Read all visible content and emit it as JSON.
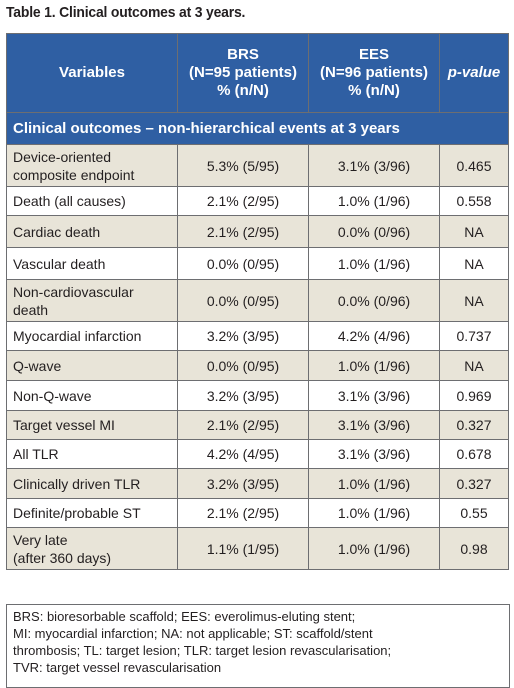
{
  "caption": "Table 1. Clinical outcomes at 3 years.",
  "header": {
    "col1": "Variables",
    "col2_line1": "BRS",
    "col2_line2": "(N=95 patients)",
    "col2_line3": "% (n/N)",
    "col3_line1": "EES",
    "col3_line2": "(N=96 patients)",
    "col3_line3": "% (n/N)",
    "col4": "p-value"
  },
  "section_title": "Clinical outcomes – non-hierarchical events at 3 years",
  "rows": [
    {
      "label_line1": "Device-oriented",
      "label_line2": "composite endpoint",
      "brs": "5.3% (5/95)",
      "ees": "3.1% (3/96)",
      "p": "0.465"
    },
    {
      "label_line1": "Death (all causes)",
      "label_line2": "",
      "brs": "2.1% (2/95)",
      "ees": "1.0% (1/96)",
      "p": "0.558"
    },
    {
      "label_line1": "Cardiac death",
      "label_line2": "",
      "brs": "2.1% (2/95)",
      "ees": "0.0% (0/96)",
      "p": "NA"
    },
    {
      "label_line1": "Vascular death",
      "label_line2": "",
      "brs": "0.0% (0/95)",
      "ees": "1.0% (1/96)",
      "p": "NA"
    },
    {
      "label_line1": "Non-cardiovascular",
      "label_line2": "death",
      "brs": "0.0% (0/95)",
      "ees": "0.0% (0/96)",
      "p": "NA"
    },
    {
      "label_line1": "Myocardial infarction",
      "label_line2": "",
      "brs": "3.2% (3/95)",
      "ees": "4.2% (4/96)",
      "p": "0.737"
    },
    {
      "label_line1": "Q-wave",
      "label_line2": "",
      "brs": "0.0% (0/95)",
      "ees": "1.0% (1/96)",
      "p": "NA"
    },
    {
      "label_line1": "Non-Q-wave",
      "label_line2": "",
      "brs": "3.2% (3/95)",
      "ees": "3.1% (3/96)",
      "p": "0.969"
    },
    {
      "label_line1": "Target vessel MI",
      "label_line2": "",
      "brs": "2.1% (2/95)",
      "ees": "3.1% (3/96)",
      "p": "0.327"
    },
    {
      "label_line1": "All TLR",
      "label_line2": "",
      "brs": "4.2% (4/95)",
      "ees": "3.1% (3/96)",
      "p": "0.678"
    },
    {
      "label_line1": "Clinically driven TLR",
      "label_line2": "",
      "brs": "3.2% (3/95)",
      "ees": "1.0% (1/96)",
      "p": "0.327"
    },
    {
      "label_line1": "Definite/probable ST",
      "label_line2": "",
      "brs": "2.1% (2/95)",
      "ees": "1.0% (1/96)",
      "p": "0.55"
    },
    {
      "label_line1": "Very late",
      "label_line2": "(after 360 days)",
      "brs": "1.1% (1/95)",
      "ees": "1.0% (1/96)",
      "p": "0.98"
    }
  ],
  "footnote": [
    "BRS: bioresorbable scaffold; EES: everolimus-eluting stent;",
    "MI: myocardial infarction; NA: not applicable; ST: scaffold/stent",
    "thrombosis; TL: target lesion; TLR: target lesion revascularisation;",
    "TVR: target vessel revascularisation"
  ]
}
